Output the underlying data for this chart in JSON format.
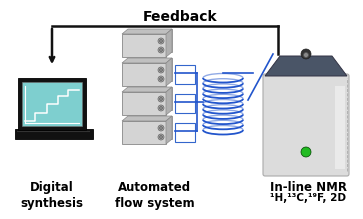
{
  "title": "Feedback",
  "label1": "Digital\nsynthesis",
  "label2": "Automated\nflow system",
  "label3_line1": "In-line NMR",
  "label3_line2": "¹H,¹³C,¹⁹F, 2D",
  "bg_color": "#ffffff",
  "title_fontsize": 10,
  "label_fontsize": 8.5,
  "arrow_color": "#111111",
  "laptop_screen_bg": "#7ecfcf",
  "flow_box_color": "#d0d0d0",
  "flow_box_edge": "#888888",
  "nmr_body_light": "#e0e0e0",
  "nmr_body_dark": "#4a5a6a",
  "nmr_edge_dark": "#888888",
  "coil_color": "#2255cc",
  "green_dot": "#22bb22",
  "line_color": "#2255cc",
  "connect_box_color": "#e8f0ff",
  "connect_box_edge": "#3366cc"
}
